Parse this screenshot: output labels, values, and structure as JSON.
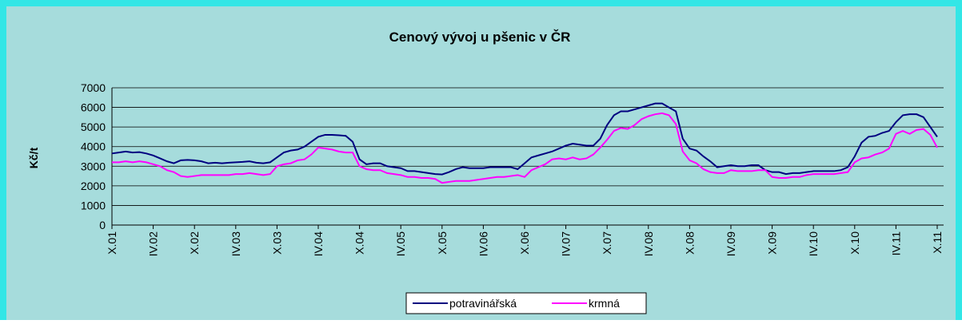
{
  "chart_data": {
    "type": "line",
    "title": "Cenový vývoj u pšenic v ČR",
    "ylabel": "Kč/t",
    "categories": [
      "X.01",
      null,
      null,
      null,
      null,
      null,
      "IV.02",
      null,
      null,
      null,
      null,
      null,
      "X.02",
      null,
      null,
      null,
      null,
      null,
      "IV.03",
      null,
      null,
      null,
      null,
      null,
      "X.03",
      null,
      null,
      null,
      null,
      null,
      "IV.04",
      null,
      null,
      null,
      null,
      null,
      "X.04",
      null,
      null,
      null,
      null,
      null,
      "IV.05",
      null,
      null,
      null,
      null,
      null,
      "X.05",
      null,
      null,
      null,
      null,
      null,
      "IV.06",
      null,
      null,
      null,
      null,
      null,
      "X.06",
      null,
      null,
      null,
      null,
      null,
      "IV.07",
      null,
      null,
      null,
      null,
      null,
      "X.07",
      null,
      null,
      null,
      null,
      null,
      "IV.08",
      null,
      null,
      null,
      null,
      null,
      "X.08",
      null,
      null,
      null,
      null,
      null,
      "IV.09",
      null,
      null,
      null,
      null,
      null,
      "X.09",
      null,
      null,
      null,
      null,
      null,
      "IV.10",
      null,
      null,
      null,
      null,
      null,
      "X.10",
      null,
      null,
      null,
      null,
      null,
      "IV.11",
      null,
      null,
      null,
      null,
      null,
      "X.11"
    ],
    "series": [
      {
        "name": "potravinářská",
        "color": "#000080",
        "values": [
          3650,
          3700,
          3750,
          3700,
          3720,
          3650,
          3550,
          3400,
          3250,
          3150,
          3300,
          3320,
          3300,
          3250,
          3150,
          3180,
          3150,
          3180,
          3200,
          3220,
          3250,
          3180,
          3150,
          3200,
          3450,
          3700,
          3800,
          3850,
          4000,
          4250,
          4500,
          4600,
          4600,
          4580,
          4550,
          4250,
          3350,
          3100,
          3150,
          3150,
          3000,
          2950,
          2900,
          2750,
          2750,
          2700,
          2650,
          2600,
          2580,
          2700,
          2850,
          2950,
          2900,
          2900,
          2900,
          2950,
          2950,
          2950,
          2950,
          2850,
          3150,
          3450,
          3550,
          3650,
          3750,
          3900,
          4050,
          4150,
          4100,
          4050,
          4050,
          4400,
          5100,
          5600,
          5800,
          5800,
          5900,
          6000,
          6100,
          6200,
          6200,
          6000,
          5800,
          4400,
          3900,
          3800,
          3500,
          3250,
          2950,
          3000,
          3050,
          3000,
          3000,
          3050,
          3050,
          2800,
          2700,
          2700,
          2600,
          2650,
          2650,
          2700,
          2750,
          2750,
          2750,
          2750,
          2800,
          2950,
          3500,
          4200,
          4500,
          4550,
          4700,
          4800,
          5250,
          5600,
          5650,
          5650,
          5500,
          5000,
          4500
        ]
      },
      {
        "name": "krmná",
        "color": "#ff00ff",
        "values": [
          3200,
          3200,
          3250,
          3200,
          3250,
          3200,
          3100,
          3000,
          2800,
          2700,
          2500,
          2450,
          2500,
          2550,
          2550,
          2550,
          2550,
          2550,
          2600,
          2600,
          2650,
          2600,
          2550,
          2600,
          3000,
          3100,
          3150,
          3300,
          3350,
          3600,
          3950,
          3900,
          3850,
          3750,
          3700,
          3700,
          3000,
          2850,
          2800,
          2800,
          2650,
          2600,
          2550,
          2450,
          2450,
          2400,
          2400,
          2350,
          2150,
          2200,
          2250,
          2250,
          2250,
          2300,
          2350,
          2400,
          2450,
          2450,
          2500,
          2550,
          2450,
          2800,
          2950,
          3100,
          3350,
          3400,
          3350,
          3450,
          3350,
          3400,
          3600,
          3950,
          4350,
          4800,
          4950,
          4900,
          5100,
          5400,
          5550,
          5650,
          5700,
          5600,
          5150,
          3750,
          3300,
          3150,
          2850,
          2700,
          2650,
          2650,
          2800,
          2750,
          2750,
          2750,
          2800,
          2800,
          2450,
          2400,
          2400,
          2450,
          2450,
          2550,
          2600,
          2600,
          2600,
          2600,
          2650,
          2700,
          3200,
          3400,
          3450,
          3600,
          3700,
          3900,
          4650,
          4800,
          4650,
          4850,
          4900,
          4600,
          3950
        ]
      }
    ],
    "ylim": [
      0,
      7000
    ],
    "yticks": [
      0,
      1000,
      2000,
      3000,
      4000,
      5000,
      6000,
      7000
    ],
    "grid": true,
    "legend": "bottom"
  }
}
